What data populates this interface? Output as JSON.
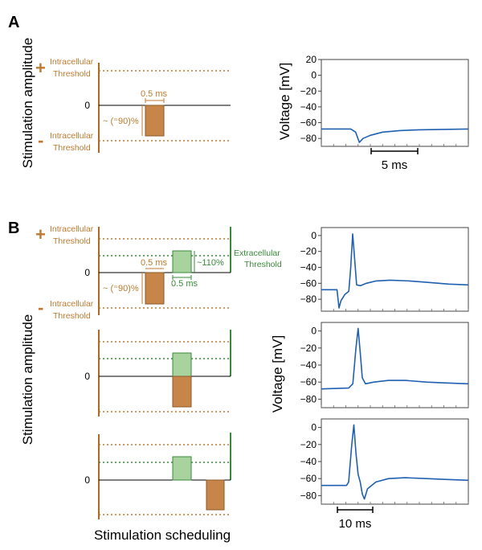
{
  "panels": {
    "a": "A",
    "b": "B"
  },
  "labels": {
    "stim_amplitude": "Stimulation amplitude",
    "stim_scheduling": "Stimulation scheduling",
    "voltage_axis": "Voltage [mV]",
    "plus": "+",
    "minus": "-",
    "intracellular": "Intracellular",
    "threshold": "Threshold",
    "extracellular": "Extracellular",
    "zero": "0",
    "pulse_width": "0.5 ms",
    "neg_amplitude": "~ (⁼90)%",
    "pos_amplitude": "~110%"
  },
  "colors": {
    "intracellular": "#c07a30",
    "extracellular": "#3a8a3a",
    "neg_pulse": "#c8854a",
    "pos_pulse": "#a9d39e",
    "trace": "#2060b0"
  },
  "chart_data": [
    {
      "type": "line",
      "title": "",
      "xlabel": "",
      "ylabel": "Voltage [mV]",
      "ylim": [
        -90,
        20
      ],
      "yticks": [
        20,
        0,
        -20,
        -40,
        -60,
        -80
      ],
      "scale_bar": "5 ms",
      "series": [
        {
          "values": [
            [
              0,
              -68
            ],
            [
              12,
              -68
            ],
            [
              14,
              -72
            ],
            [
              15.5,
              -85
            ],
            [
              17,
              -80
            ],
            [
              20,
              -76
            ],
            [
              25,
              -72
            ],
            [
              32,
              -70
            ],
            [
              40,
              -69
            ],
            [
              50,
              -68.5
            ],
            [
              60,
              -68
            ]
          ]
        }
      ]
    },
    {
      "type": "line",
      "title": "",
      "xlabel": "",
      "ylabel": "",
      "ylim": [
        -95,
        10
      ],
      "yticks": [
        0,
        -20,
        -40,
        -60,
        -80
      ],
      "series": [
        {
          "values": [
            [
              0,
              -68
            ],
            [
              8,
              -68
            ],
            [
              9,
              -91
            ],
            [
              10,
              -82
            ],
            [
              12,
              -74
            ],
            [
              14,
              -70
            ],
            [
              15,
              -40
            ],
            [
              16,
              2
            ],
            [
              17,
              -30
            ],
            [
              18,
              -62
            ],
            [
              20,
              -63
            ],
            [
              23,
              -60
            ],
            [
              28,
              -57
            ],
            [
              35,
              -56
            ],
            [
              45,
              -57
            ],
            [
              55,
              -59
            ],
            [
              65,
              -61
            ],
            [
              75,
              -62
            ]
          ]
        }
      ]
    },
    {
      "type": "line",
      "title": "",
      "xlabel": "",
      "ylabel": "",
      "ylim": [
        -90,
        10
      ],
      "yticks": [
        0,
        -20,
        -40,
        -60,
        -80
      ],
      "series": [
        {
          "values": [
            [
              0,
              -68
            ],
            [
              13,
              -67
            ],
            [
              15,
              -62
            ],
            [
              16.5,
              -20
            ],
            [
              17.5,
              3
            ],
            [
              18.5,
              -25
            ],
            [
              19.5,
              -55
            ],
            [
              21,
              -62
            ],
            [
              25,
              -60
            ],
            [
              32,
              -58
            ],
            [
              40,
              -58
            ],
            [
              50,
              -60
            ],
            [
              60,
              -61
            ],
            [
              70,
              -62
            ]
          ]
        }
      ]
    },
    {
      "type": "line",
      "title": "",
      "xlabel": "",
      "ylabel": "",
      "ylim": [
        -90,
        10
      ],
      "yticks": [
        0,
        -20,
        -40,
        -60,
        -80
      ],
      "scale_bar": "10 ms",
      "series": [
        {
          "values": [
            [
              0,
              -68
            ],
            [
              12,
              -68
            ],
            [
              13,
              -64
            ],
            [
              14.5,
              -20
            ],
            [
              15.5,
              3
            ],
            [
              16.5,
              -30
            ],
            [
              17.5,
              -55
            ],
            [
              18.5,
              -64
            ],
            [
              19.5,
              -78
            ],
            [
              20.5,
              -84
            ],
            [
              22,
              -72
            ],
            [
              26,
              -64
            ],
            [
              32,
              -60
            ],
            [
              40,
              -59
            ],
            [
              50,
              -60
            ],
            [
              60,
              -61
            ],
            [
              70,
              -62
            ]
          ]
        }
      ]
    }
  ]
}
